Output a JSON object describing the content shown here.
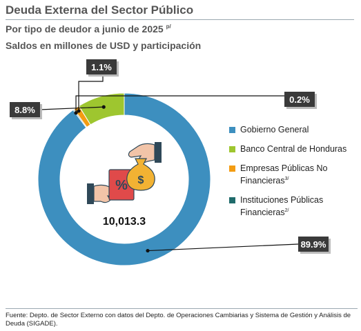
{
  "header": {
    "title": "Deuda Externa del Sector Público",
    "subtitle_line1": "Por tipo de deudor a junio de 2025",
    "subtitle_line1_sup": "p/",
    "subtitle_line2": "Saldos en millones de USD y participación"
  },
  "chart_data": {
    "type": "pie",
    "donut": true,
    "total_label": "10,013.3",
    "categories": [
      "Gobierno General",
      "Banco Central de Honduras",
      "Empresas Públicas No Financieras",
      "Instituciones Públicas Financieras"
    ],
    "values": [
      89.9,
      8.8,
      1.1,
      0.2
    ],
    "data_labels": [
      "89.9%",
      "8.8%",
      "1.1%",
      "0.2%"
    ],
    "colors": [
      "#3d8fbf",
      "#9ec62f",
      "#f39c12",
      "#1f6b6b"
    ],
    "legend_placement": "right"
  },
  "legend": {
    "items": [
      {
        "label": "Gobierno General",
        "sup": ""
      },
      {
        "label": "Banco Central de Honduras",
        "sup": ""
      },
      {
        "label": "Empresas Públicas No Financieras",
        "sup": "3/"
      },
      {
        "label": "Instituciones Públicas Financieras",
        "sup": "2/"
      }
    ]
  },
  "center_icon": "money-exchange-icon",
  "source": "Fuente: Depto. de Sector Externo con datos del Depto. de Operaciones Cambiarias y Sistema de Gestión y Análisis de Deuda (SIGADE)."
}
